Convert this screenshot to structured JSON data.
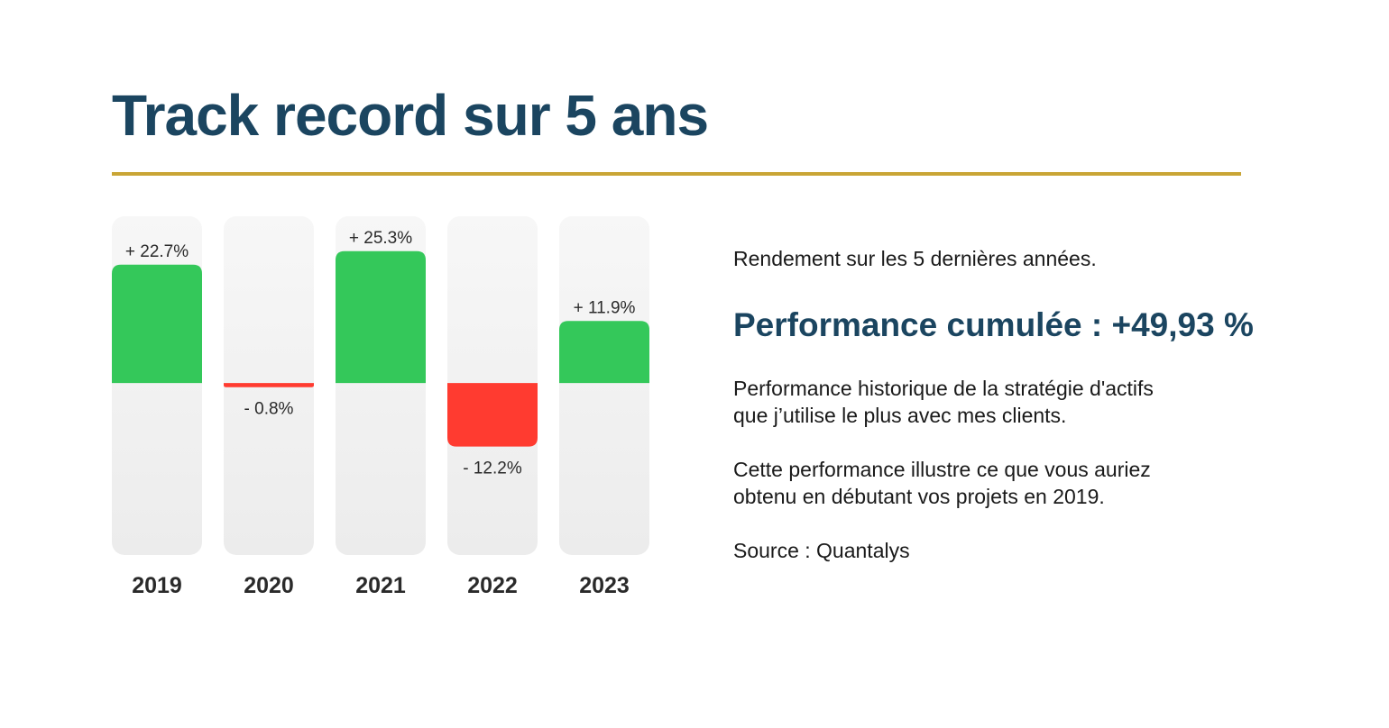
{
  "header": {
    "title": "Track record sur 5 ans"
  },
  "colors": {
    "title": "#1b4560",
    "rule": "#c9a535",
    "positive": "#34c85a",
    "negative": "#ff3b30",
    "track_top": "#f7f7f7",
    "track_bottom": "#ececec",
    "year_label": "#2a2a2a",
    "value_label": "#2a2a2a"
  },
  "info": {
    "intro": "Rendement sur les 5 dernières années.",
    "performance": "Performance cumulée : +49,93 %",
    "description_line1": "Performance historique de la stratégie d'actifs",
    "description_line2": "que j’utilise le plus avec mes clients.",
    "illustration_line1": "Cette performance illustre ce que vous auriez",
    "illustration_line2": "obtenu en débutant vos projets en 2019.",
    "source": "Source : Quantalys"
  },
  "chart_data": {
    "type": "bar",
    "categories": [
      "2019",
      "2020",
      "2021",
      "2022",
      "2023"
    ],
    "values": [
      22.7,
      -0.8,
      25.3,
      -12.2,
      11.9
    ],
    "value_labels": [
      "+ 22.7%",
      "- 0.8%",
      "+ 25.3%",
      "- 12.2%",
      "+ 11.9%"
    ],
    "unit": "%",
    "ylim": [
      -33,
      32
    ],
    "grid": false,
    "legend": "none"
  }
}
